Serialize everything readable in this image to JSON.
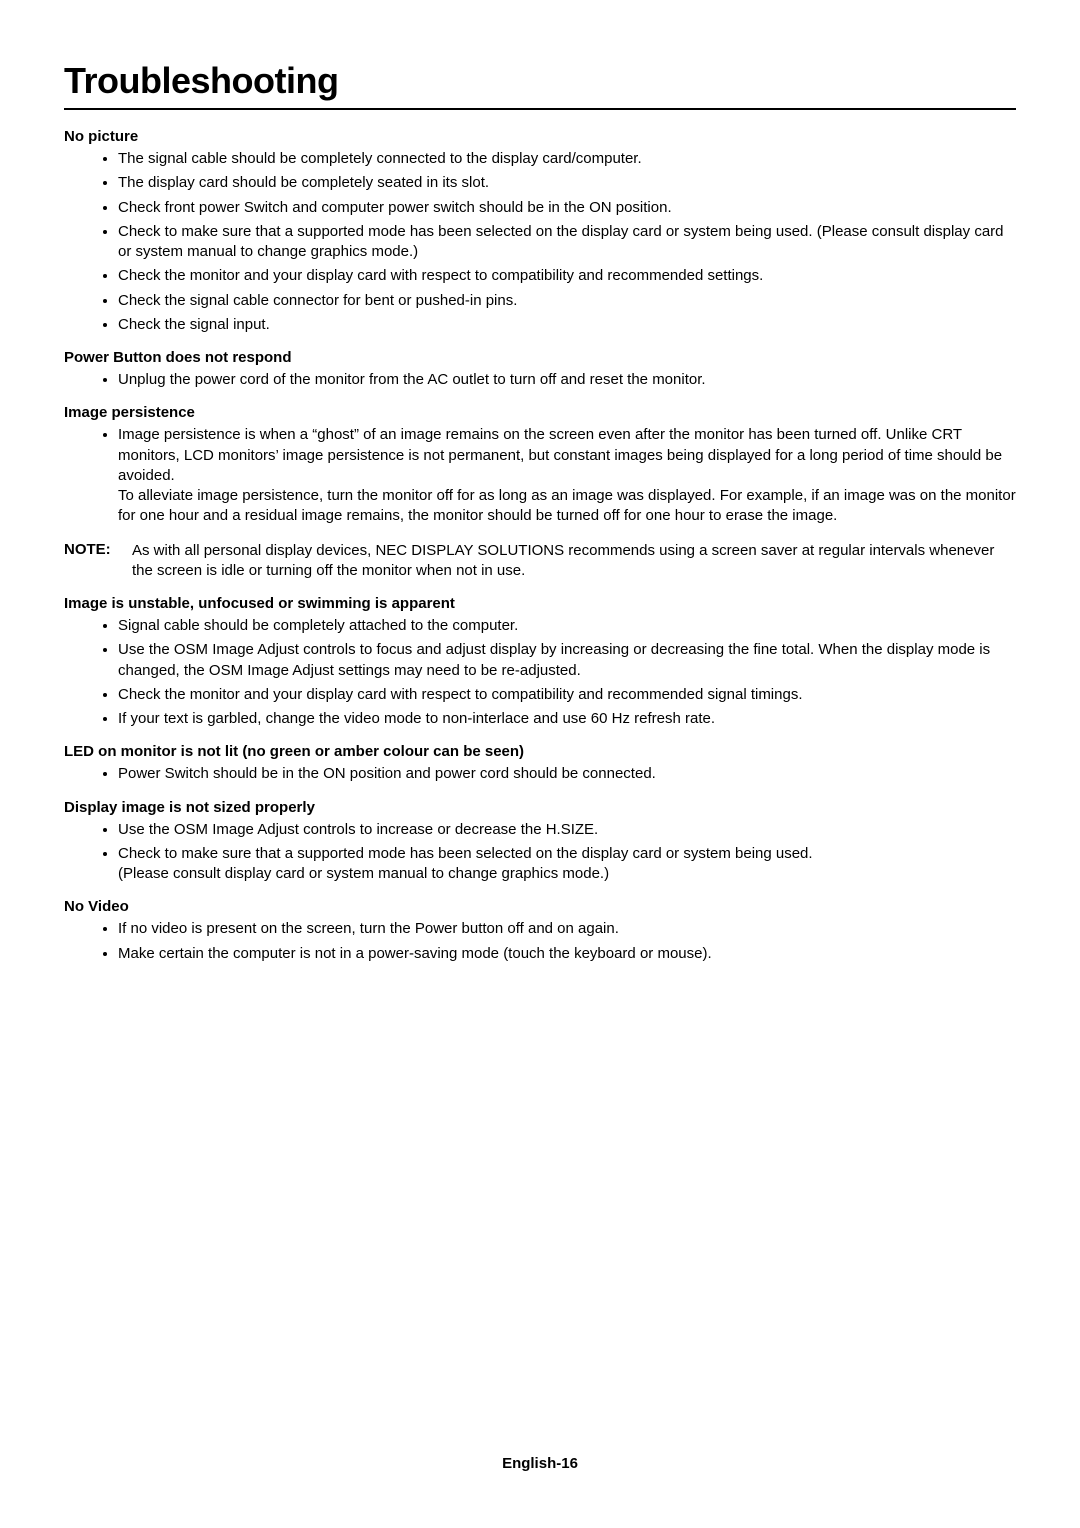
{
  "title": "Troubleshooting",
  "sections": [
    {
      "heading": "No picture",
      "items": [
        "The signal cable should be completely connected to the display card/computer.",
        "The display card should be completely seated in its slot.",
        "Check front power Switch and computer power switch should be in the ON position.",
        "Check to make sure that a supported mode has been selected on the display card or system being used. (Please consult display card or system manual to change graphics mode.)",
        "Check the monitor and your display card with respect to compatibility and recommended settings.",
        "Check the signal cable connector for bent or pushed-in pins.",
        "Check the signal input."
      ]
    },
    {
      "heading": "Power Button does not respond",
      "items": [
        "Unplug the power cord of the monitor from the AC outlet to turn off and reset the monitor."
      ]
    },
    {
      "heading": "Image persistence",
      "items": [
        "Image persistence is when a “ghost” of an image remains on the screen even after the monitor has been turned off. Unlike CRT monitors, LCD monitors’ image persistence is not permanent, but constant images being displayed for a long period of time should be avoided.\nTo alleviate image persistence, turn the monitor off for as long as an image was displayed. For example, if an image was on the monitor for one hour and a residual image remains, the monitor should be turned off for one hour to erase the image."
      ]
    }
  ],
  "note": {
    "label": "NOTE:",
    "text": "As with all personal display devices, NEC DISPLAY SOLUTIONS recommends using a screen saver at regular intervals whenever the screen is idle or turning off the monitor when not in use."
  },
  "sections_after_note": [
    {
      "heading": "Image is unstable, unfocused or swimming is apparent",
      "items": [
        "Signal cable should be completely attached to the computer.",
        "Use the OSM Image Adjust controls to focus and adjust display by increasing or decreasing the fine total. When the display mode is changed, the OSM Image Adjust settings may need to be re-adjusted.",
        "Check the monitor and your display card with respect to compatibility and recommended signal timings.",
        "If your text is garbled, change the video mode to non-interlace and use 60 Hz refresh rate."
      ]
    },
    {
      "heading": "LED on monitor is not lit (no green or amber colour can be seen)",
      "items": [
        "Power Switch should be in the ON position and power cord should be connected."
      ]
    },
    {
      "heading": "Display image is not sized properly",
      "items": [
        "Use the OSM Image Adjust controls to increase or decrease the H.SIZE.",
        "Check to make sure that a supported mode has been selected on the display card or system being used.\n(Please consult display card or system manual to change graphics mode.)"
      ]
    },
    {
      "heading": "No Video",
      "items": [
        "If no video is present on the screen, turn the Power button off and on again.",
        "Make certain the computer is not in a power-saving mode (touch the keyboard or mouse)."
      ]
    }
  ],
  "footer": "English-16"
}
